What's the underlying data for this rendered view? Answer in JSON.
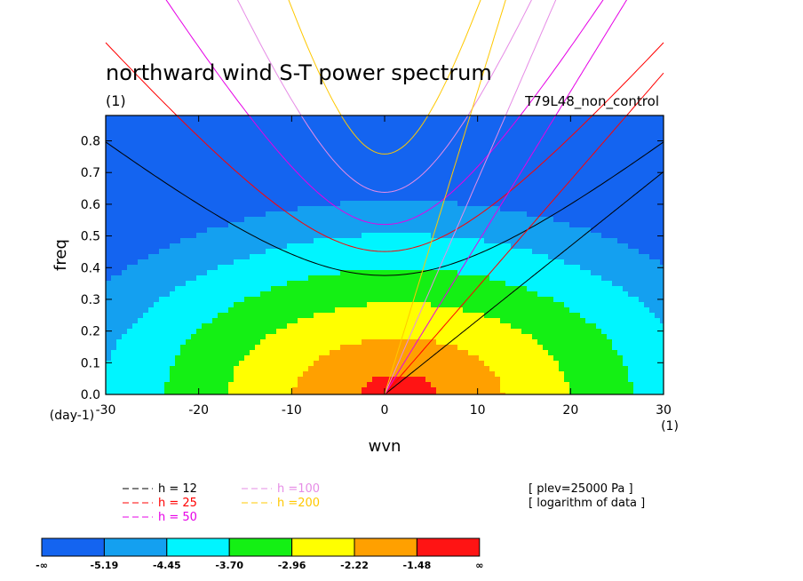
{
  "chart_data": {
    "type": "heatmap",
    "title": "northward wind S-T power spectrum",
    "title_units": "(1)",
    "run_label": "T79L48_non_control",
    "xlabel": "wvn",
    "x_units": "(1)",
    "ylabel": "freq",
    "y_units": "(day-1)",
    "xlim": [
      -30,
      30
    ],
    "ylim": [
      0,
      0.88
    ],
    "x_ticks": [
      -30,
      -20,
      -10,
      0,
      10,
      20,
      30
    ],
    "x_tick_labels": [
      "-30",
      "-20",
      "-10",
      "0",
      "10",
      "20",
      "30"
    ],
    "y_ticks": [
      0,
      0.1,
      0.2,
      0.3,
      0.4,
      0.5,
      0.6,
      0.7,
      0.8
    ],
    "y_tick_labels": [
      "0.0",
      "0.1",
      "0.2",
      "0.3",
      "0.4",
      "0.5",
      "0.6",
      "0.7",
      "0.8"
    ],
    "contour_levels": [
      -5.19,
      -4.45,
      -3.7,
      -2.96,
      -2.22,
      -1.48
    ],
    "colorbar_labels": [
      "-∞",
      "-5.19",
      "-4.45",
      "-3.70",
      "-2.96",
      "-2.22",
      "-1.48",
      "∞"
    ],
    "colors": [
      "#1464f0",
      "#14a0f0",
      "#00f5ff",
      "#14f014",
      "#ffff00",
      "#ffa000",
      "#ff1414"
    ],
    "field_peak_log10": -1.1,
    "field_peak_wvn": 1.5,
    "dispersion_curves": [
      {
        "label": "h = 12",
        "h": 12,
        "color": "#000000"
      },
      {
        "label": "h = 25",
        "h": 25,
        "color": "#ff0000"
      },
      {
        "label": "h = 50",
        "h": 50,
        "color": "#e600e6"
      },
      {
        "label": "h =100",
        "h": 100,
        "color": "#e68ce6"
      },
      {
        "label": "h =200",
        "h": 200,
        "color": "#ffc800"
      }
    ],
    "annotations": [
      "[ plev=25000 Pa ]",
      "[ logarithm of data ]"
    ]
  }
}
